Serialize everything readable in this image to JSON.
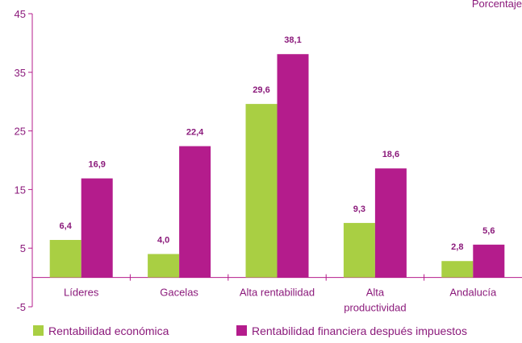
{
  "chart_data": {
    "type": "bar",
    "unit_label": "Porcentaje",
    "categories": [
      [
        "Líderes"
      ],
      [
        "Gacelas"
      ],
      [
        "Alta rentabilidad"
      ],
      [
        "Alta",
        "productividad"
      ],
      [
        "Andalucía"
      ]
    ],
    "series": [
      {
        "name": "Rentabilidad económica",
        "color": "#a9cf43",
        "values": [
          6.4,
          4.0,
          29.6,
          9.3,
          2.8
        ],
        "labels": [
          "6,4",
          "4,0",
          "29,6",
          "9,3",
          "2,8"
        ]
      },
      {
        "name": "Rentabilidad financiera después impuestos",
        "color": "#b41c8c",
        "values": [
          16.9,
          22.4,
          38.1,
          18.6,
          5.6
        ],
        "labels": [
          "16,9",
          "22,4",
          "38,1",
          "18,6",
          "5,6"
        ]
      }
    ],
    "yticks": [
      45,
      35,
      25,
      15,
      5,
      -5
    ],
    "ylim": [
      -5,
      45
    ],
    "axis_color": "#b41c8c",
    "legend_position": "bottom"
  }
}
